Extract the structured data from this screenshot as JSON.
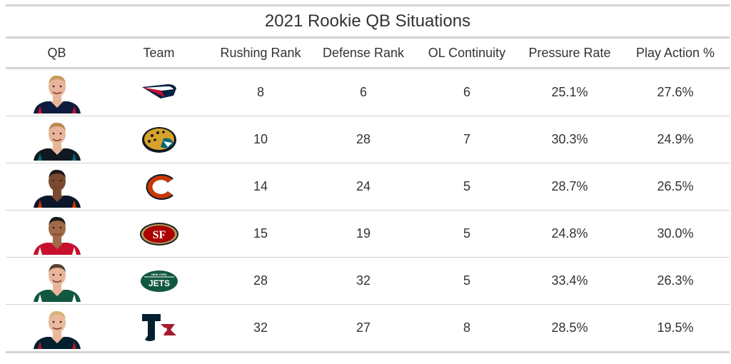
{
  "title": "2021 Rookie QB Situations",
  "columns": [
    "QB",
    "Team",
    "Rushing Rank",
    "Defense Rank",
    "OL Continuity",
    "Pressure Rate",
    "Play Action %"
  ],
  "rows": [
    {
      "qb_icon": "qb-headshot-icon",
      "team_icon": "patriots-logo-icon",
      "rushing_rank": "8",
      "defense_rank": "6",
      "ol_continuity": "6",
      "pressure_rate": "25.1%",
      "play_action": "27.6%",
      "jersey_color": "#0d1b3e",
      "jersey_trim": "#c8102e",
      "skin": "#e8b59a",
      "hair": "#c69a5a"
    },
    {
      "qb_icon": "qb-headshot-icon",
      "team_icon": "jaguars-logo-icon",
      "rushing_rank": "10",
      "defense_rank": "28",
      "ol_continuity": "7",
      "pressure_rate": "30.3%",
      "play_action": "24.9%",
      "jersey_color": "#101820",
      "jersey_trim": "#006778",
      "skin": "#e8b59a",
      "hair": "#b98a4e"
    },
    {
      "qb_icon": "qb-headshot-icon",
      "team_icon": "bears-logo-icon",
      "rushing_rank": "14",
      "defense_rank": "24",
      "ol_continuity": "5",
      "pressure_rate": "28.7%",
      "play_action": "26.5%",
      "jersey_color": "#0b162a",
      "jersey_trim": "#c83803",
      "skin": "#7a4a30",
      "hair": "#1a1a1a"
    },
    {
      "qb_icon": "qb-headshot-icon",
      "team_icon": "49ers-logo-icon",
      "rushing_rank": "15",
      "defense_rank": "19",
      "ol_continuity": "5",
      "pressure_rate": "24.8%",
      "play_action": "30.0%",
      "jersey_color": "#c8102e",
      "jersey_trim": "#ffffff",
      "skin": "#a06a48",
      "hair": "#1a1a1a"
    },
    {
      "qb_icon": "qb-headshot-icon",
      "team_icon": "jets-logo-icon",
      "rushing_rank": "28",
      "defense_rank": "32",
      "ol_continuity": "5",
      "pressure_rate": "33.4%",
      "play_action": "26.3%",
      "jersey_color": "#125740",
      "jersey_trim": "#ffffff",
      "skin": "#e8b59a",
      "hair": "#5a4030"
    },
    {
      "qb_icon": "qb-headshot-icon",
      "team_icon": "texans-logo-icon",
      "rushing_rank": "32",
      "defense_rank": "27",
      "ol_continuity": "8",
      "pressure_rate": "28.5%",
      "play_action": "19.5%",
      "jersey_color": "#03202f",
      "jersey_trim": "#a71930",
      "skin": "#eab89c",
      "hair": "#d8b57a"
    }
  ],
  "colors": {
    "rule": "#d3d3d3",
    "text": "#333333",
    "patriots_navy": "#002244",
    "patriots_red": "#c60c30",
    "jaguars_gold": "#d7a22a",
    "jaguars_teal": "#006778",
    "bears_orange": "#c83803",
    "bears_navy": "#0b162a",
    "niners_red": "#aa0000",
    "niners_gold": "#b3995d",
    "jets_green": "#125740",
    "texans_navy": "#03202f",
    "texans_red": "#a71930"
  }
}
